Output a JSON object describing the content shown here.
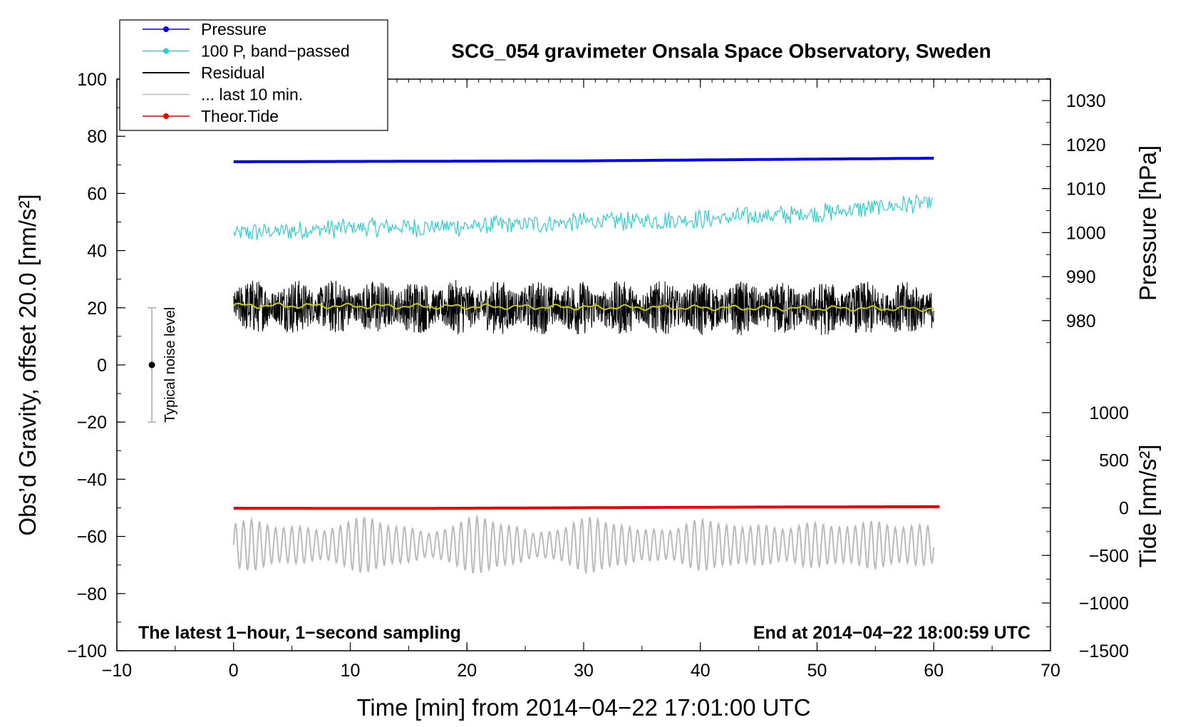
{
  "chart_data": {
    "type": "line",
    "title": "SCG_054 gravimeter Onsala Space Observatory, Sweden",
    "xlabel": "Time [min] from 2014−04−22 17:01:00 UTC",
    "ylabel_left": "Obs’d Gravity, offset 20.0 [nm/s²]",
    "ylabel_right_top": "Pressure [hPa]",
    "ylabel_right_bottom": "Tide [nm/s²]",
    "xlim": [
      -10,
      70
    ],
    "ylim_left": [
      -100,
      100
    ],
    "x_ticks": [
      -10,
      0,
      10,
      20,
      30,
      40,
      50,
      60,
      70
    ],
    "x_tick_labels": [
      "−10",
      "0",
      "10",
      "20",
      "30",
      "40",
      "50",
      "60",
      "70"
    ],
    "y_left_ticks": [
      100,
      80,
      60,
      40,
      20,
      0,
      -20,
      -40,
      -60,
      -80,
      -100
    ],
    "y_left_tick_labels": [
      "100",
      "80",
      "60",
      "40",
      "20",
      "0",
      "−20",
      "−40",
      "−60",
      "−80",
      "−100"
    ],
    "pressure_axis": {
      "ticks": [
        1030,
        1020,
        1010,
        1000,
        990,
        980
      ],
      "tick_labels": [
        "1030",
        "1020",
        "1010",
        "1000",
        "990",
        "980"
      ],
      "gravity_at_1000": 46.3,
      "gravity_per_hpa": 1.54
    },
    "tide_axis": {
      "ticks": [
        1000,
        500,
        0,
        -500,
        -1000,
        -1500
      ],
      "tick_labels": [
        "1000",
        "500",
        "0",
        "−500",
        "−1000",
        "−1500"
      ],
      "gravity_at_0": -50,
      "gravity_per_unit": 0.0333
    },
    "legend": {
      "placement": "top-left",
      "entries": [
        {
          "label": "Pressure",
          "color": "#0000ee",
          "marker": true
        },
        {
          "label": "100 P, band−passed",
          "color": "#33cccc",
          "marker": true
        },
        {
          "label": "Residual",
          "color": "#000000",
          "marker": false
        },
        {
          "label": "... last 10 min.",
          "color": "#bbbbbb",
          "marker": false
        },
        {
          "label": "Theor.Tide",
          "color": "#ee0000",
          "marker": true
        }
      ]
    },
    "series": [
      {
        "name": "Pressure",
        "color": "#0000ee",
        "kind": "pressure",
        "x": [
          0,
          15,
          30,
          45,
          60
        ],
        "values": [
          1016.1,
          1016.2,
          1016.3,
          1016.6,
          1016.9
        ]
      },
      {
        "name": "100 P, band−passed",
        "color": "#33cccc",
        "kind": "noisy",
        "x": [
          0,
          10,
          20,
          30,
          40,
          50,
          60
        ],
        "values": [
          46,
          48,
          48.5,
          50,
          51,
          53,
          57
        ],
        "amplitude": 3
      },
      {
        "name": "Residual",
        "color": "#000000",
        "kind": "noisy",
        "x": [
          0,
          30,
          60
        ],
        "values": [
          20.5,
          20,
          19.5
        ],
        "amplitude": 8
      },
      {
        "name": "running mean",
        "color": "#cccc00",
        "kind": "smooth",
        "x": [
          0,
          10,
          20,
          30,
          40,
          50,
          60
        ],
        "values": [
          20.8,
          20.6,
          20.4,
          20.2,
          20,
          19.8,
          19.7
        ]
      },
      {
        "name": "... last 10 min.",
        "color": "#bbbbbb",
        "kind": "oscillation",
        "x": [
          0,
          60
        ],
        "values": [
          -63,
          -63
        ],
        "amplitude": 9
      },
      {
        "name": "Theor.Tide",
        "color": "#ee0000",
        "kind": "tide",
        "x": [
          0,
          15,
          30,
          45,
          60
        ],
        "values": [
          -4,
          -6,
          1,
          8,
          12
        ]
      }
    ],
    "noise_bar": {
      "label": "Typical noise level",
      "x": -7,
      "center": 0,
      "low": -20,
      "high": 20
    },
    "annotations": {
      "bottom_left": "The latest 1−hour, 1−second sampling",
      "bottom_right": "End at 2014−04−22 18:00:59 UTC"
    }
  }
}
